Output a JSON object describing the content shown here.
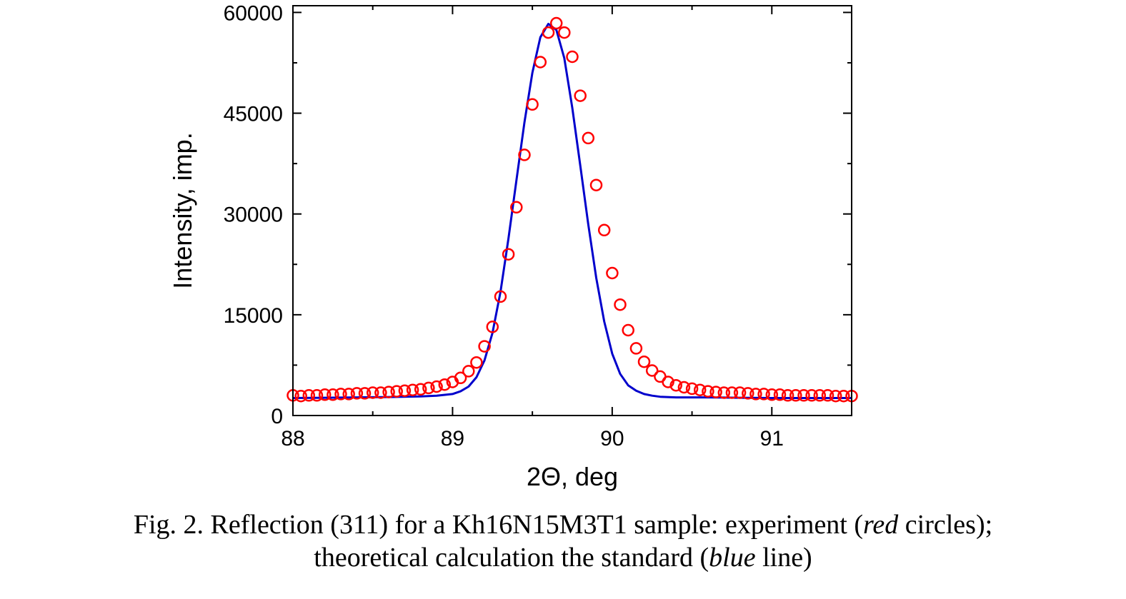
{
  "chart_data": {
    "type": "scatter",
    "xlabel": "2Θ, deg",
    "ylabel": "Intensity, imp.",
    "xlim": [
      88,
      91.5
    ],
    "ylim": [
      0,
      61000
    ],
    "x_ticks": [
      88,
      89,
      90,
      91
    ],
    "y_ticks": [
      0,
      15000,
      30000,
      45000,
      60000
    ],
    "grid": false,
    "colors": {
      "experiment": "#ff0000",
      "theory": "#0000cc"
    },
    "series": [
      {
        "kind": "scatter",
        "x": [
          88.0,
          88.05,
          88.1,
          88.15,
          88.2,
          88.25,
          88.3,
          88.35,
          88.4,
          88.45,
          88.5,
          88.55,
          88.6,
          88.65,
          88.7,
          88.75,
          88.8,
          88.85,
          88.9,
          88.95,
          89.0,
          89.05,
          89.1,
          89.15,
          89.2,
          89.25,
          89.3,
          89.35,
          89.4,
          89.45,
          89.5,
          89.55,
          89.6,
          89.65,
          89.7,
          89.75,
          89.8,
          89.85,
          89.9,
          89.95,
          90.0,
          90.05,
          90.1,
          90.15,
          90.2,
          90.25,
          90.3,
          90.35,
          90.4,
          90.45,
          90.5,
          90.55,
          90.6,
          90.65,
          90.7,
          90.75,
          90.8,
          90.85,
          90.9,
          90.95,
          91.0,
          91.05,
          91.1,
          91.15,
          91.2,
          91.25,
          91.3,
          91.35,
          91.4,
          91.45,
          91.5
        ],
        "y": [
          3000,
          2900,
          3000,
          3000,
          3100,
          3100,
          3200,
          3200,
          3300,
          3300,
          3400,
          3400,
          3500,
          3600,
          3700,
          3800,
          3900,
          4100,
          4300,
          4600,
          5000,
          5600,
          6600,
          7900,
          10300,
          13200,
          17700,
          24000,
          31000,
          38800,
          46300,
          52600,
          57000,
          58400,
          57000,
          53400,
          47600,
          41300,
          34300,
          27600,
          21200,
          16500,
          12700,
          10000,
          8000,
          6700,
          5800,
          5000,
          4500,
          4200,
          4000,
          3800,
          3600,
          3500,
          3400,
          3400,
          3400,
          3300,
          3200,
          3200,
          3100,
          3100,
          3000,
          3000,
          3000,
          3000,
          3000,
          3000,
          2900,
          2900,
          2900
        ]
      },
      {
        "kind": "line",
        "x": [
          88.0,
          88.2,
          88.4,
          88.6,
          88.8,
          88.9,
          89.0,
          89.05,
          89.1,
          89.15,
          89.2,
          89.25,
          89.3,
          89.35,
          89.4,
          89.45,
          89.5,
          89.55,
          89.6,
          89.65,
          89.7,
          89.75,
          89.8,
          89.85,
          89.9,
          89.95,
          90.0,
          90.05,
          90.1,
          90.15,
          90.2,
          90.25,
          90.3,
          90.4,
          90.6,
          90.8,
          91.0,
          91.2,
          91.5
        ],
        "y": [
          2600,
          2650,
          2700,
          2750,
          2850,
          2950,
          3200,
          3600,
          4300,
          5700,
          8200,
          12300,
          18400,
          26300,
          35000,
          43600,
          51000,
          56300,
          58300,
          57400,
          53200,
          45800,
          37200,
          28500,
          20500,
          14000,
          9200,
          6200,
          4500,
          3700,
          3200,
          2950,
          2800,
          2700,
          2700,
          2650,
          2600,
          2600,
          2600
        ]
      }
    ]
  },
  "caption": {
    "line1_pre": "Fig. 2. Reflection (311) for a Kh16N15M3T1 sample: experiment (",
    "line1_em": "red",
    "line1_post": " circles);",
    "line2_pre": "theoretical calculation the standard (",
    "line2_em": "blue",
    "line2_post": " line)"
  }
}
